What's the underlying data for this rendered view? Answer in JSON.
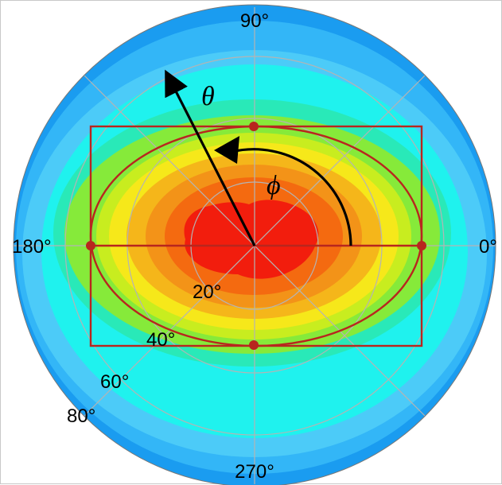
{
  "angle_labels": {
    "deg0": "0°",
    "deg90": "90°",
    "deg180": "180°",
    "deg270": "270°"
  },
  "radius_labels": {
    "r20": "20°",
    "r40": "40°",
    "r60": "60°",
    "r80": "80°"
  },
  "symbols": {
    "theta": "θ",
    "phi": "ϕ"
  },
  "colors": {
    "outer_blue": "#1a9cf0",
    "mid_blue": "#33b6f7",
    "light_blue": "#4ccbf8",
    "cyan": "#1ff2ee",
    "aqua_green": "#29e9b8",
    "green": "#86ea3a",
    "yellow_green": "#c8ed1f",
    "yellow": "#f6e81a",
    "orange_yellow": "#f5b61a",
    "orange": "#f39318",
    "red_orange": "#f46a10",
    "red": "#f21d0d",
    "overlay": "#b8261e",
    "grid": "#b4b4b4"
  }
}
